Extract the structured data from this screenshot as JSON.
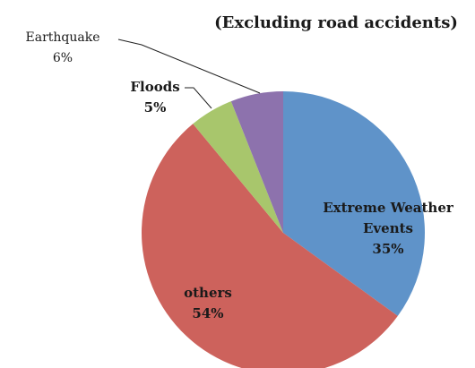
{
  "chart_data": {
    "type": "pie",
    "title": "(Excluding road accidents)",
    "categories": [
      "Extreme Weather Events",
      "others",
      "Floods",
      "Earthquake"
    ],
    "values": [
      35,
      54,
      5,
      6
    ],
    "value_labels": [
      "35%",
      "54%",
      "5%",
      "6%"
    ],
    "colors": [
      "#5f93c9",
      "#cd625c",
      "#a8c66c",
      "#8d72ad"
    ]
  }
}
